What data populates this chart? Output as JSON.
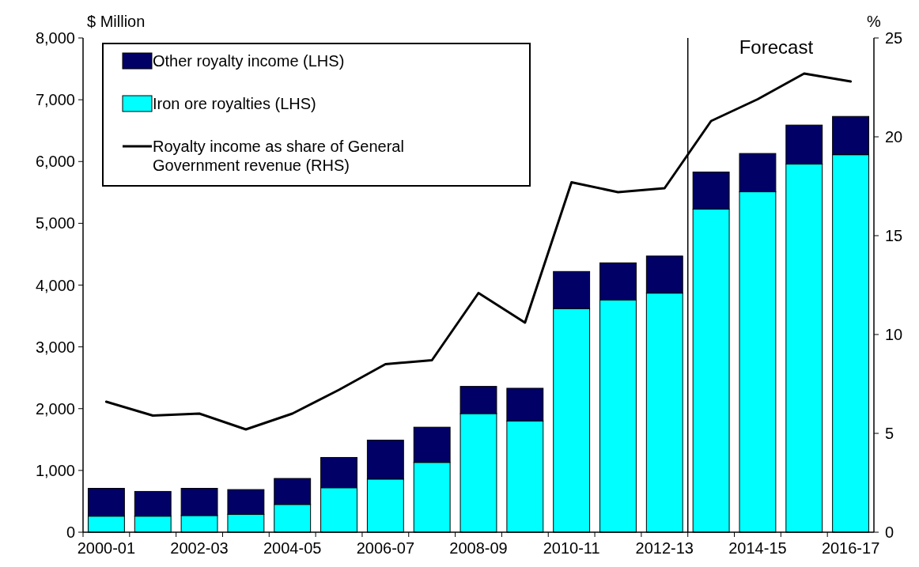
{
  "chart_data": {
    "type": "bar",
    "stacked": true,
    "ylabel": "$ Million",
    "y2label": "%",
    "categories": [
      "2000-01",
      null,
      "2002-03",
      null,
      "2004-05",
      null,
      "2006-07",
      null,
      "2008-09",
      null,
      "2010-11",
      null,
      "2012-13",
      null,
      "2014-15",
      null,
      "2016-17"
    ],
    "series": [
      {
        "name": "Iron ore royalties (LHS)",
        "color": "#00ffff",
        "values": [
          260,
          260,
          270,
          290,
          450,
          720,
          860,
          1130,
          1920,
          1800,
          3620,
          3760,
          3870,
          5230,
          5510,
          5960,
          6110
        ]
      },
      {
        "name": "Other royalty income (LHS)",
        "color": "#000066",
        "values": [
          450,
          400,
          440,
          400,
          420,
          490,
          630,
          570,
          440,
          530,
          600,
          600,
          600,
          600,
          620,
          630,
          620
        ]
      },
      {
        "name": "Royalty income as share of General Government revenue (RHS)",
        "type": "line",
        "axis": "y2",
        "color": "#000000",
        "values": [
          6.6,
          5.9,
          6.0,
          5.2,
          6.0,
          7.2,
          8.5,
          8.7,
          12.1,
          10.6,
          17.7,
          17.2,
          17.4,
          20.8,
          21.9,
          23.2,
          22.8
        ]
      }
    ],
    "ylim": [
      0,
      8000
    ],
    "yticks": [
      {
        "value": 0,
        "label": "0"
      },
      {
        "value": 1000,
        "label": "1,000"
      },
      {
        "value": 2000,
        "label": "2,000"
      },
      {
        "value": 3000,
        "label": "3,000"
      },
      {
        "value": 4000,
        "label": "4,000"
      },
      {
        "value": 5000,
        "label": "5,000"
      },
      {
        "value": 6000,
        "label": "6,000"
      },
      {
        "value": 7000,
        "label": "7,000"
      },
      {
        "value": 8000,
        "label": "8,000"
      }
    ],
    "y2lim": [
      0,
      25
    ],
    "y2ticks": [
      0,
      5,
      10,
      15,
      20,
      25
    ],
    "annotations": [
      "Forecast"
    ],
    "legend": "top left",
    "grid": false,
    "marker": "none",
    "line_style": "solid"
  }
}
